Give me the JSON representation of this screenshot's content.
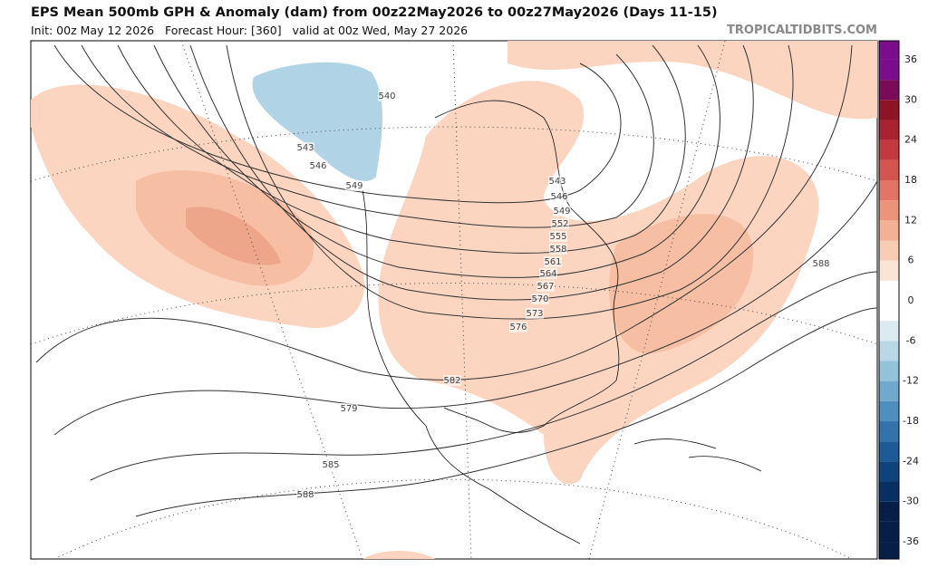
{
  "header": {
    "title": "EPS Mean 500mb GPH & Anomaly (dam) from 00z22May2026 to 00z27May2026 (Days 11-15)",
    "subtitle": "Init: 00z May 12 2026   Forecast Hour: [360]   valid at 00z Wed, May 27 2026",
    "site": "TROPICALTIDBITS.COM"
  },
  "contour_labels": [
    540,
    543,
    546,
    549,
    543,
    546,
    549,
    552,
    555,
    558,
    561,
    564,
    567,
    570,
    573,
    576,
    582,
    579,
    585,
    588,
    588
  ],
  "colorbar": {
    "labels": [
      36,
      30,
      24,
      18,
      12,
      6,
      0,
      -6,
      -12,
      -18,
      -24,
      -30,
      -36
    ]
  }
}
